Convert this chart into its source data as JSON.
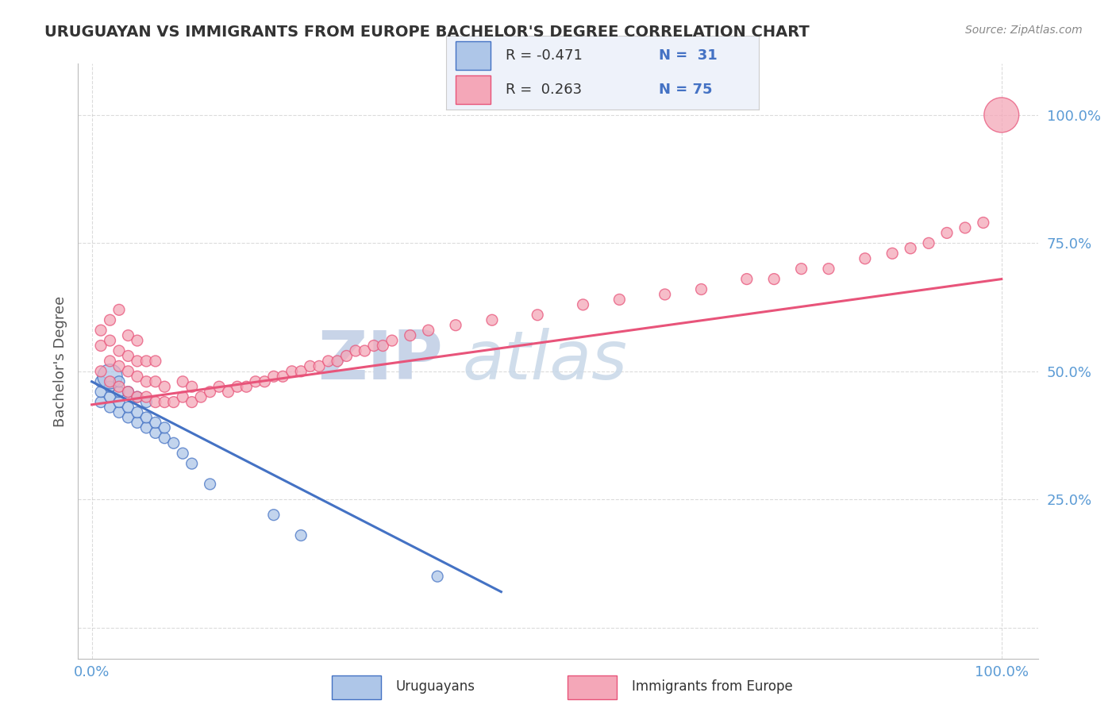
{
  "title": "URUGUAYAN VS IMMIGRANTS FROM EUROPE BACHELOR'S DEGREE CORRELATION CHART",
  "source_text": "Source: ZipAtlas.com",
  "ylabel": "Bachelor's Degree",
  "legend_blue_label": "Uruguayans",
  "legend_pink_label": "Immigrants from Europe",
  "watermark_text": "ZIP atlas",
  "blue_x": [
    0.01,
    0.01,
    0.01,
    0.02,
    0.02,
    0.02,
    0.02,
    0.03,
    0.03,
    0.03,
    0.03,
    0.04,
    0.04,
    0.04,
    0.05,
    0.05,
    0.05,
    0.06,
    0.06,
    0.06,
    0.07,
    0.07,
    0.08,
    0.08,
    0.09,
    0.1,
    0.11,
    0.13,
    0.2,
    0.23,
    0.38
  ],
  "blue_y": [
    0.44,
    0.46,
    0.48,
    0.43,
    0.45,
    0.47,
    0.49,
    0.42,
    0.44,
    0.46,
    0.48,
    0.41,
    0.43,
    0.46,
    0.4,
    0.42,
    0.45,
    0.39,
    0.41,
    0.44,
    0.38,
    0.4,
    0.37,
    0.39,
    0.36,
    0.34,
    0.32,
    0.28,
    0.22,
    0.18,
    0.1
  ],
  "blue_sizes_raw": [
    40,
    40,
    40,
    40,
    40,
    40,
    200,
    40,
    40,
    40,
    40,
    40,
    40,
    40,
    40,
    40,
    40,
    40,
    40,
    40,
    40,
    40,
    40,
    40,
    40,
    40,
    40,
    40,
    40,
    40,
    40
  ],
  "pink_x": [
    0.01,
    0.01,
    0.01,
    0.02,
    0.02,
    0.02,
    0.02,
    0.03,
    0.03,
    0.03,
    0.03,
    0.04,
    0.04,
    0.04,
    0.04,
    0.05,
    0.05,
    0.05,
    0.05,
    0.06,
    0.06,
    0.06,
    0.07,
    0.07,
    0.07,
    0.08,
    0.08,
    0.09,
    0.1,
    0.1,
    0.11,
    0.11,
    0.12,
    0.13,
    0.14,
    0.15,
    0.16,
    0.17,
    0.18,
    0.19,
    0.2,
    0.21,
    0.22,
    0.23,
    0.24,
    0.25,
    0.26,
    0.27,
    0.28,
    0.29,
    0.3,
    0.31,
    0.32,
    0.33,
    0.35,
    0.37,
    0.4,
    0.44,
    0.49,
    0.54,
    0.58,
    0.63,
    0.67,
    0.72,
    0.75,
    0.78,
    0.81,
    0.85,
    0.88,
    0.9,
    0.92,
    0.94,
    0.96,
    0.98,
    1.0
  ],
  "pink_y": [
    0.5,
    0.55,
    0.58,
    0.48,
    0.52,
    0.56,
    0.6,
    0.47,
    0.51,
    0.54,
    0.62,
    0.46,
    0.5,
    0.53,
    0.57,
    0.45,
    0.49,
    0.52,
    0.56,
    0.45,
    0.48,
    0.52,
    0.44,
    0.48,
    0.52,
    0.44,
    0.47,
    0.44,
    0.45,
    0.48,
    0.44,
    0.47,
    0.45,
    0.46,
    0.47,
    0.46,
    0.47,
    0.47,
    0.48,
    0.48,
    0.49,
    0.49,
    0.5,
    0.5,
    0.51,
    0.51,
    0.52,
    0.52,
    0.53,
    0.54,
    0.54,
    0.55,
    0.55,
    0.56,
    0.57,
    0.58,
    0.59,
    0.6,
    0.61,
    0.63,
    0.64,
    0.65,
    0.66,
    0.68,
    0.68,
    0.7,
    0.7,
    0.72,
    0.73,
    0.74,
    0.75,
    0.77,
    0.78,
    0.79,
    1.0
  ],
  "pink_sizes_raw": [
    40,
    40,
    40,
    40,
    40,
    40,
    40,
    40,
    40,
    40,
    40,
    40,
    40,
    40,
    40,
    40,
    40,
    40,
    40,
    40,
    40,
    40,
    40,
    40,
    40,
    40,
    40,
    40,
    40,
    40,
    40,
    40,
    40,
    40,
    40,
    40,
    40,
    40,
    40,
    40,
    40,
    40,
    40,
    40,
    40,
    40,
    40,
    40,
    40,
    40,
    40,
    40,
    40,
    40,
    40,
    40,
    40,
    40,
    40,
    40,
    40,
    40,
    40,
    40,
    40,
    40,
    40,
    40,
    40,
    40,
    40,
    40,
    40,
    40,
    400
  ],
  "blue_line_color": "#4472C4",
  "pink_line_color": "#E8547A",
  "blue_scatter_facecolor": "#AEC6E8",
  "blue_scatter_edgecolor": "#4472C4",
  "pink_scatter_facecolor": "#F4A7B8",
  "pink_scatter_edgecolor": "#E8547A",
  "watermark_color": "#C8D4E8",
  "grid_color": "#CCCCCC",
  "background_color": "#FFFFFF",
  "title_color": "#333333",
  "axis_tick_color": "#5B9BD5",
  "legend_bg_color": "#EEF2FA",
  "legend_border_color": "#CCCCCC",
  "blue_trend_x0": 0.0,
  "blue_trend_x1": 0.45,
  "blue_trend_y0": 0.48,
  "blue_trend_y1": 0.07,
  "pink_trend_x0": 0.0,
  "pink_trend_x1": 1.0,
  "pink_trend_y0": 0.435,
  "pink_trend_y1": 0.68,
  "xmin": 0.0,
  "xmax": 1.0,
  "ymin": 0.0,
  "ymax": 1.0,
  "yticks": [
    0.0,
    0.25,
    0.5,
    0.75,
    1.0
  ],
  "ytick_labels": [
    "",
    "25.0%",
    "50.0%",
    "75.0%",
    "100.0%"
  ],
  "xtick_left_label": "0.0%",
  "xtick_right_label": "100.0%"
}
